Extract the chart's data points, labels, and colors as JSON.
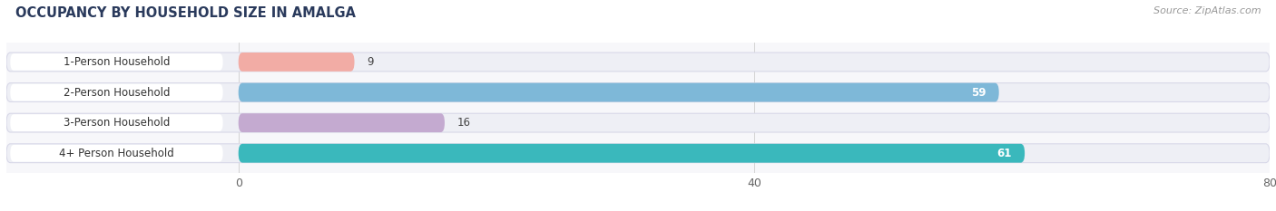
{
  "title": "OCCUPANCY BY HOUSEHOLD SIZE IN AMALGA",
  "source": "Source: ZipAtlas.com",
  "categories": [
    "1-Person Household",
    "2-Person Household",
    "3-Person Household",
    "4+ Person Household"
  ],
  "values": [
    9,
    59,
    16,
    61
  ],
  "bar_colors": [
    "#f2aca5",
    "#7eb8d8",
    "#c4aad0",
    "#3ab8bc"
  ],
  "track_color": "#eeeff5",
  "track_border_color": "#d8d8e8",
  "label_bg_color": "#ffffff",
  "xlim": [
    -18,
    80
  ],
  "xdata_min": 0,
  "xdata_max": 80,
  "xticks": [
    0,
    40,
    80
  ],
  "label_font_colors": [
    "#444444",
    "#ffffff",
    "#444444",
    "#ffffff"
  ],
  "background_color": "#ffffff",
  "plot_bg_color": "#f7f7fa",
  "bar_height": 0.62,
  "figsize": [
    14.06,
    2.33
  ],
  "dpi": 100,
  "title_color": "#2a3a5c",
  "source_color": "#999999"
}
